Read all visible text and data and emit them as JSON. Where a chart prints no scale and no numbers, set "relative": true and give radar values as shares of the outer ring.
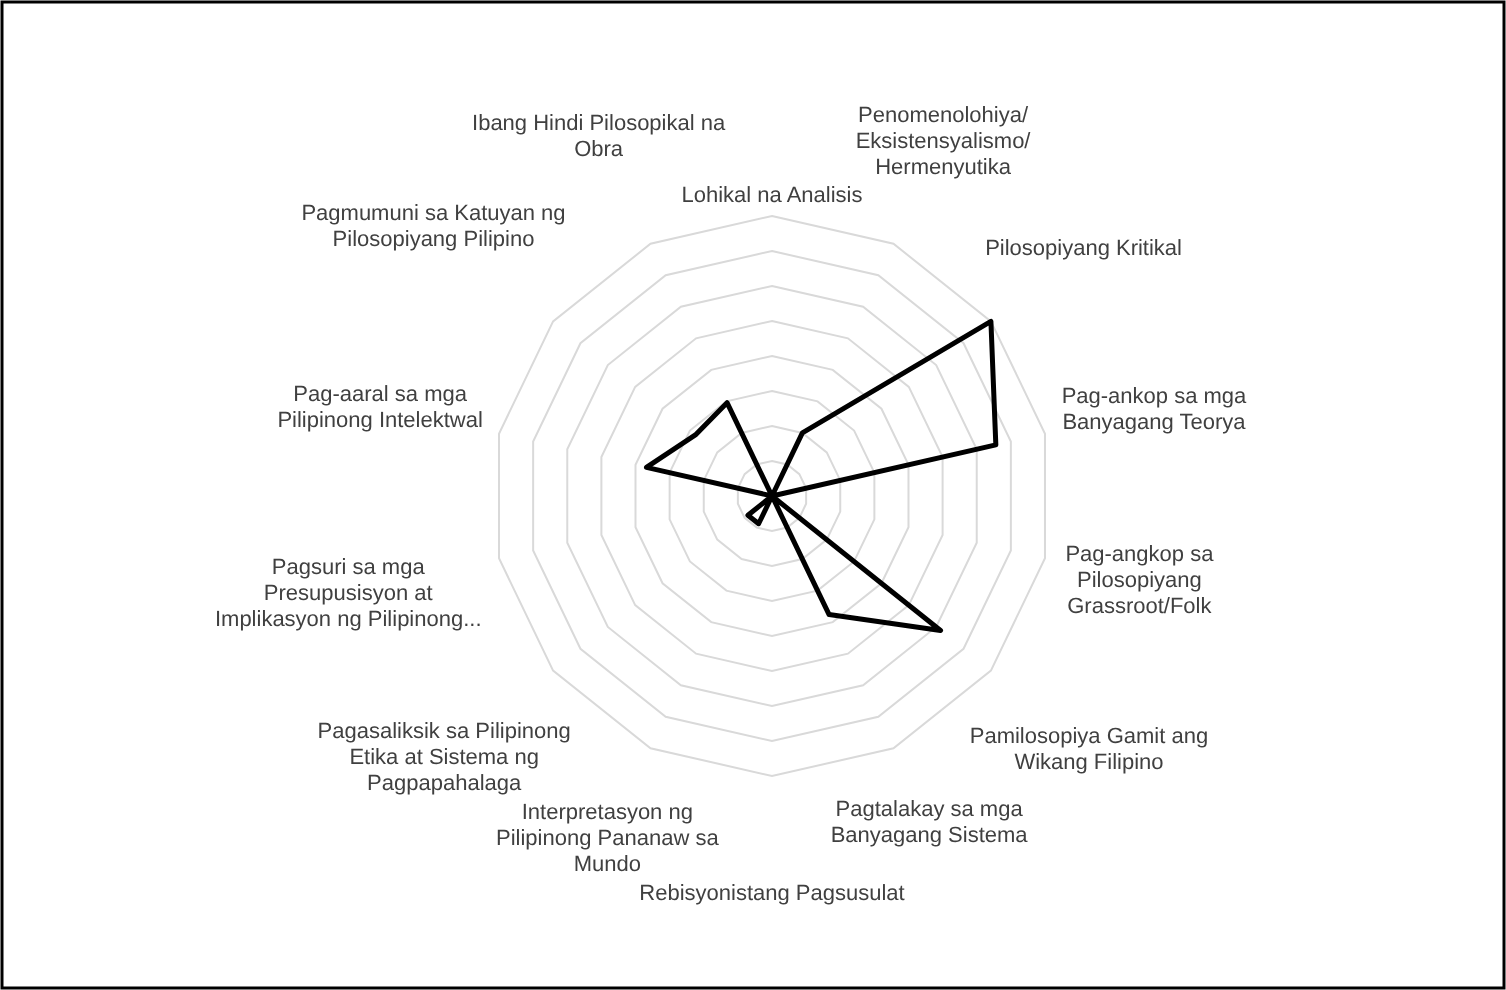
{
  "chart_data": {
    "type": "radar",
    "relative": true,
    "grid": true,
    "marker": "none",
    "categories": [
      "Lohikal na Analisis",
      "Penomenolohiya/ Eksistensyalismo/ Hermenyutika",
      "Pilosopiyang Kritikal",
      "Pag-ankop sa mga Banyagang Teorya",
      "Pag-angkop sa Pilosopiyang Grassroot/Folk",
      "Pamilosopiya Gamit ang Wikang Filipino",
      "Pagtalakay sa mga Banyagang Sistema",
      "Rebisyonistang Pagsusulat",
      "Interpretasyon ng Pilipinong Pananaw sa Mundo",
      "Pagasaliksik sa Pilipinong Etika at Sistema ng Pagpapahalaga",
      "Pagsuri sa mga Presupusisyon at Implikasyon ng Pilipinong...",
      "Pag-aaral sa mga Pilipinong Intelektwal",
      "Pagmumuni sa Katuyan ng Pilosopiyang Pilipino",
      "Ibang Hindi Pilosopikal na Obra"
    ],
    "series": [
      {
        "color": "#000000",
        "values": [
          0,
          0.25,
          1,
          0.82,
          0,
          0.77,
          0.47,
          0,
          0.11,
          0.11,
          0,
          0.46,
          0.35,
          0.37
        ]
      }
    ]
  }
}
